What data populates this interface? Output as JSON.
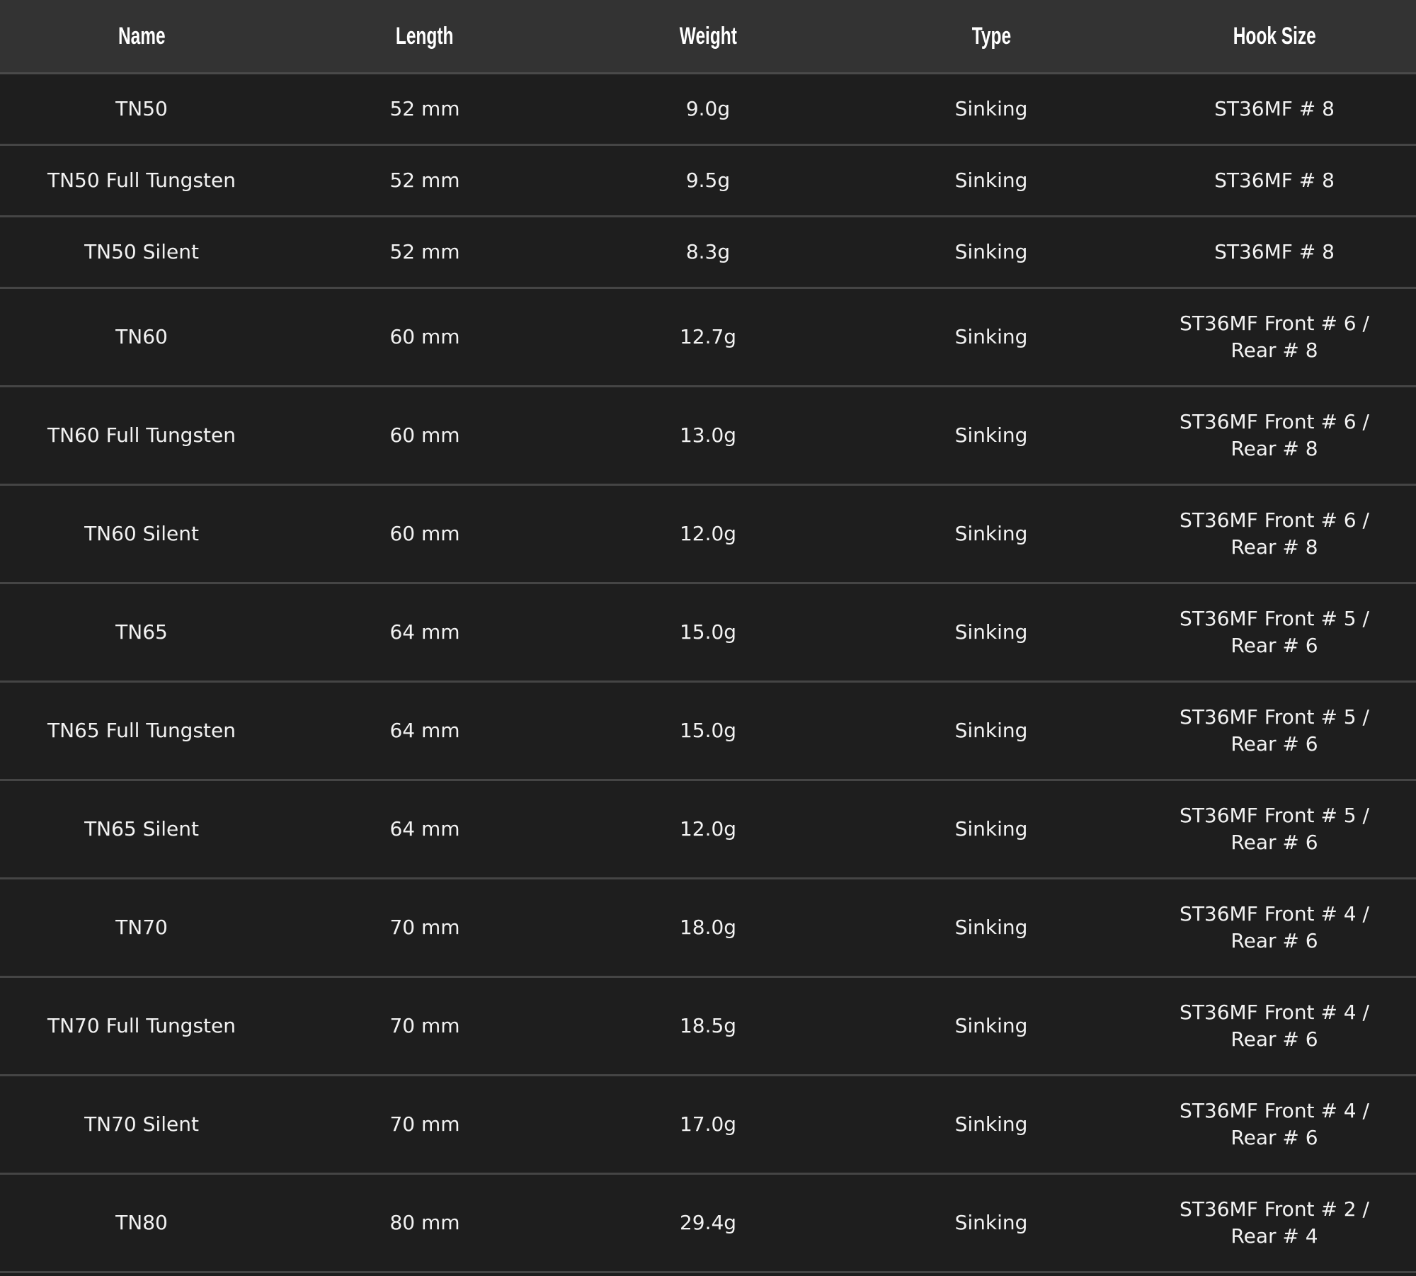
{
  "table": {
    "headers": [
      "Name",
      "Length",
      "Weight",
      "Type",
      "Hook Size"
    ],
    "rows": [
      [
        "TN50",
        "52 mm",
        "9.0g",
        "Sinking",
        "ST36MF # 8"
      ],
      [
        "TN50 Full Tungsten",
        "52 mm",
        "9.5g",
        "Sinking",
        "ST36MF # 8"
      ],
      [
        "TN50 Silent",
        "52 mm",
        "8.3g",
        "Sinking",
        "ST36MF # 8"
      ],
      [
        "TN60",
        "60 mm",
        "12.7g",
        "Sinking",
        "ST36MF Front # 6 / Rear # 8"
      ],
      [
        "TN60 Full Tungsten",
        "60 mm",
        "13.0g",
        "Sinking",
        "ST36MF Front # 6 / Rear # 8"
      ],
      [
        "TN60 Silent",
        "60 mm",
        "12.0g",
        "Sinking",
        "ST36MF Front # 6 / Rear # 8"
      ],
      [
        "TN65",
        "64 mm",
        "15.0g",
        "Sinking",
        "ST36MF Front # 5 / Rear # 6"
      ],
      [
        "TN65 Full Tungsten",
        "64 mm",
        "15.0g",
        "Sinking",
        "ST36MF Front # 5 / Rear # 6"
      ],
      [
        "TN65 Silent",
        "64 mm",
        "12.0g",
        "Sinking",
        "ST36MF Front # 5 / Rear # 6"
      ],
      [
        "TN70",
        "70 mm",
        "18.0g",
        "Sinking",
        "ST36MF Front # 4 / Rear # 6"
      ],
      [
        "TN70 Full Tungsten",
        "70 mm",
        "18.5g",
        "Sinking",
        "ST36MF Front # 4 / Rear # 6"
      ],
      [
        "TN70 Silent",
        "70 mm",
        "17.0g",
        "Sinking",
        "ST36MF Front # 4 / Rear # 6"
      ],
      [
        "TN80",
        "80 mm",
        "29.4g",
        "Sinking",
        "ST36MF Front # 2 / Rear # 4"
      ]
    ]
  },
  "colors": {
    "header_bg": "#333333",
    "row_bg": "#1e1e1e",
    "divider": "#454545",
    "text": "#f2f2f2"
  }
}
